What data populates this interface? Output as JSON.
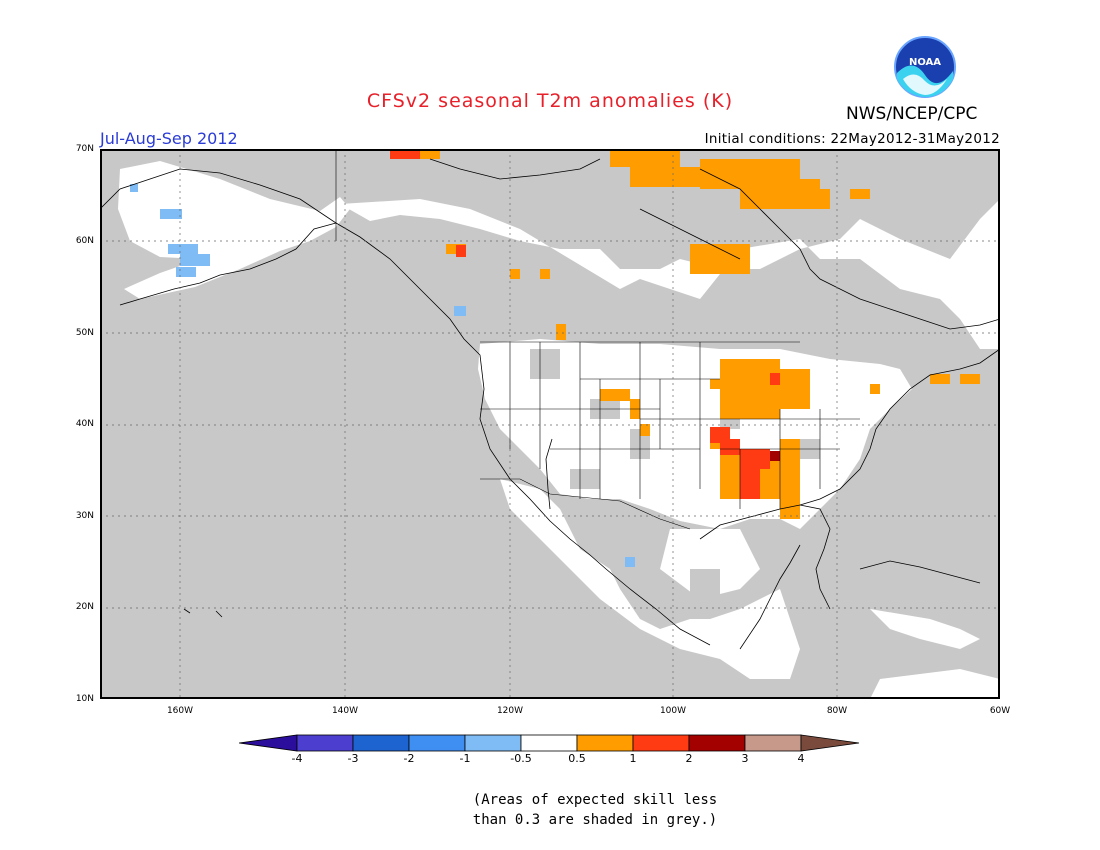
{
  "title": "CFSv2 seasonal T2m anomalies (K)",
  "organization": "NWS/NCEP/CPC",
  "logo_text": "NOAA",
  "season": "Jul-Aug-Sep 2012",
  "initial_conditions": "Initial conditions: 22May2012-31May2012",
  "lat_labels": [
    "70N",
    "60N",
    "50N",
    "40N",
    "30N",
    "20N",
    "10N"
  ],
  "lon_labels": [
    "160W",
    "140W",
    "120W",
    "100W",
    "80W",
    "60W"
  ],
  "colorbar": {
    "labels": [
      "-4",
      "-3",
      "-2",
      "-1",
      "-0.5",
      "0.5",
      "1",
      "2",
      "3",
      "4"
    ],
    "colors": [
      "#2b0e9c",
      "#4c3fd0",
      "#1e64d0",
      "#3f8ef2",
      "#7fbcf5",
      "#ffffff",
      "#ff9c00",
      "#ff3b13",
      "#a30000",
      "#c7998a",
      "#7a4a3d"
    ]
  },
  "colors": {
    "grey_low_skill": "#c8c8c8",
    "map_background_skill": "#ffffff",
    "title_red": "#e8202a",
    "period_blue": "#2a3bd6"
  },
  "note_lines": [
    "(Areas of expected skill less",
    "than 0.3 are shaded in grey.)"
  ]
}
